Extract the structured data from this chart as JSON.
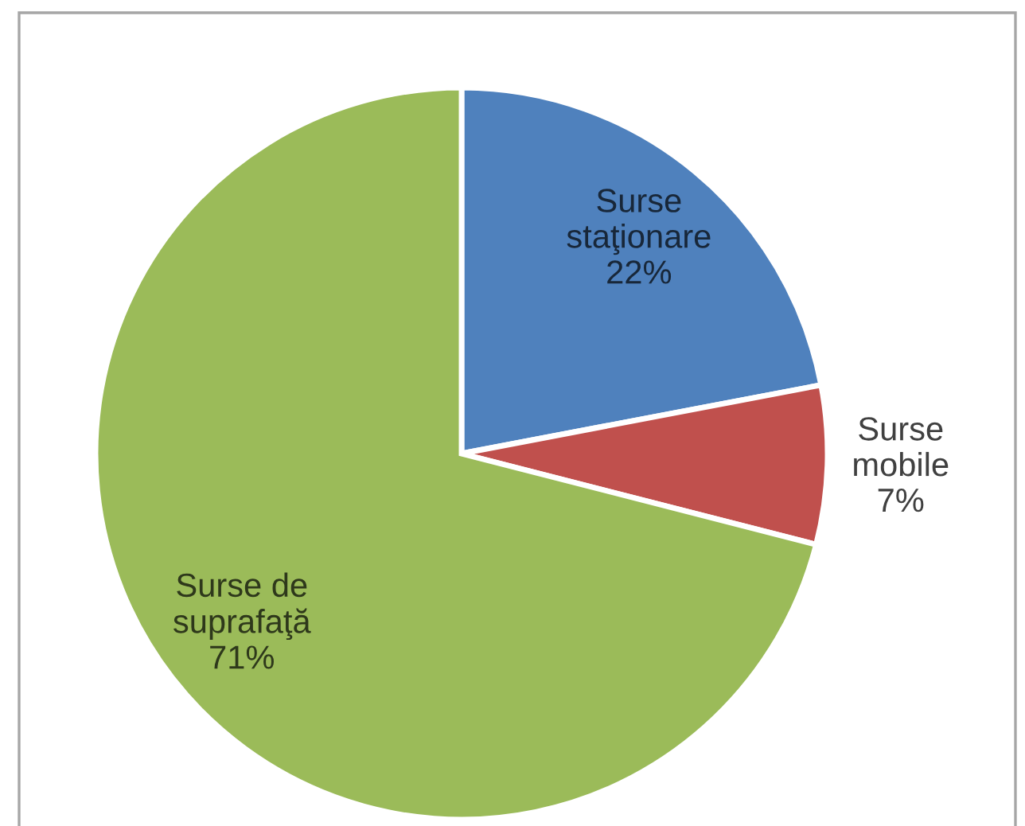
{
  "chart_data": {
    "type": "pie",
    "categories": [
      "Surse staţionare",
      "Surse mobile",
      "Surse de suprafaţă"
    ],
    "values": [
      22,
      7,
      71
    ],
    "colors": [
      "#4f81bd",
      "#c0504d",
      "#9bbb59"
    ],
    "value_labels": [
      "22%",
      "7%",
      "71%"
    ]
  }
}
